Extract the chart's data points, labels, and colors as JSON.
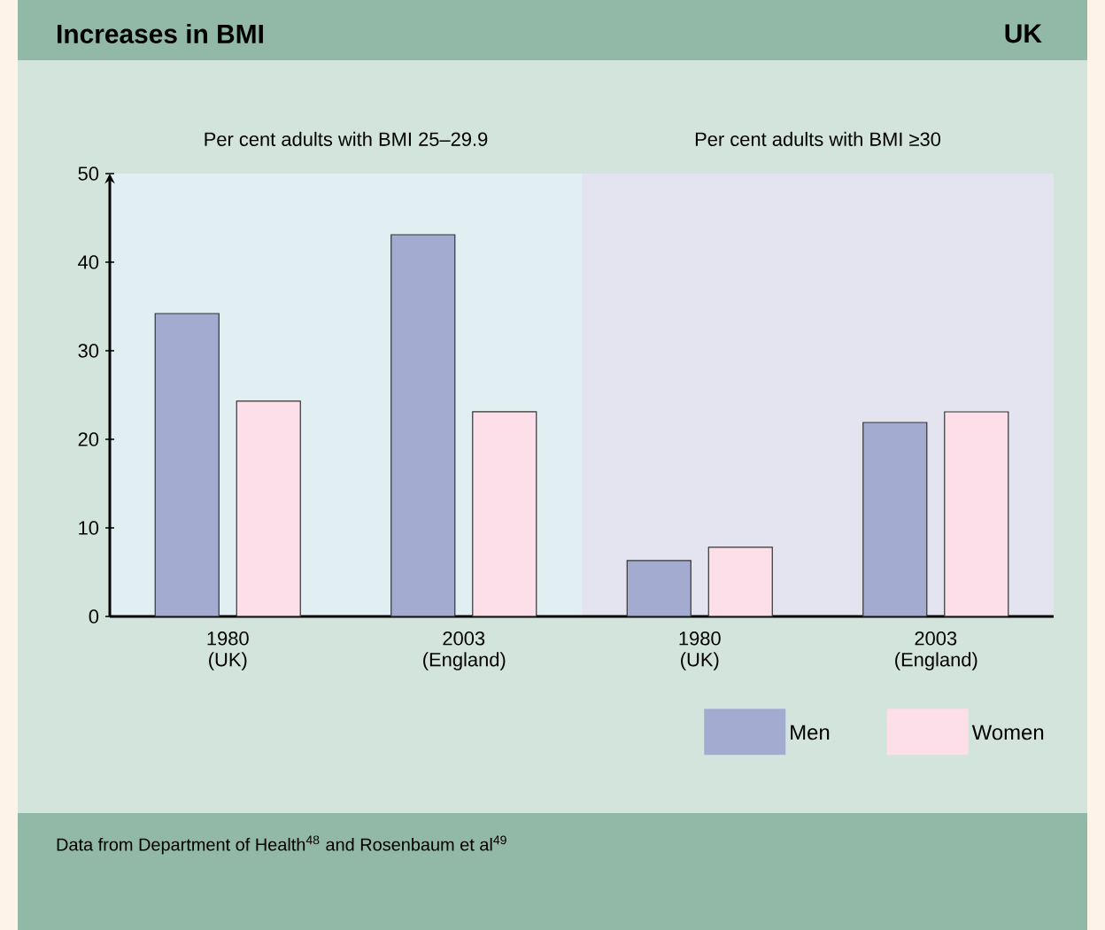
{
  "chart_data": [
    {
      "type": "other",
      "title": "Increases in BMI",
      "subtitle": "UK",
      "annotations": [
        "Data from Department of Health$^{48}$ and Rosenbaum et al$^{49}$"
      ]
    },
    {
      "type": "bar",
      "title": "Per cent adults with BMI 25–29.9",
      "categories": [
        "1980 (UK)",
        "2003 (England)"
      ],
      "series": [
        {
          "color": "#a3acd0",
          "values": [
            34.2,
            43.1
          ]
        },
        {
          "color": "#fcdfe9",
          "values": [
            24.3,
            23.1
          ]
        }
      ],
      "ylim": [
        0,
        50
      ],
      "yticks": [
        0,
        10,
        20,
        30,
        40,
        50
      ]
    },
    {
      "type": "bar",
      "title": "Per cent adults with BMI ≥30",
      "categories": [
        "1980 (UK)",
        "2003 (England)"
      ],
      "series": [
        {
          "name": "Men",
          "color": "#a3acd0",
          "values": [
            6.3,
            21.9
          ]
        },
        {
          "name": "Women",
          "color": "#fcdfe9",
          "values": [
            7.8,
            23.1
          ]
        }
      ],
      "ylim": [
        0,
        50
      ],
      "yticks": [
        0,
        10,
        20,
        30,
        40,
        50
      ],
      "tick_labels": "x",
      "legend": "bottom right"
    }
  ]
}
